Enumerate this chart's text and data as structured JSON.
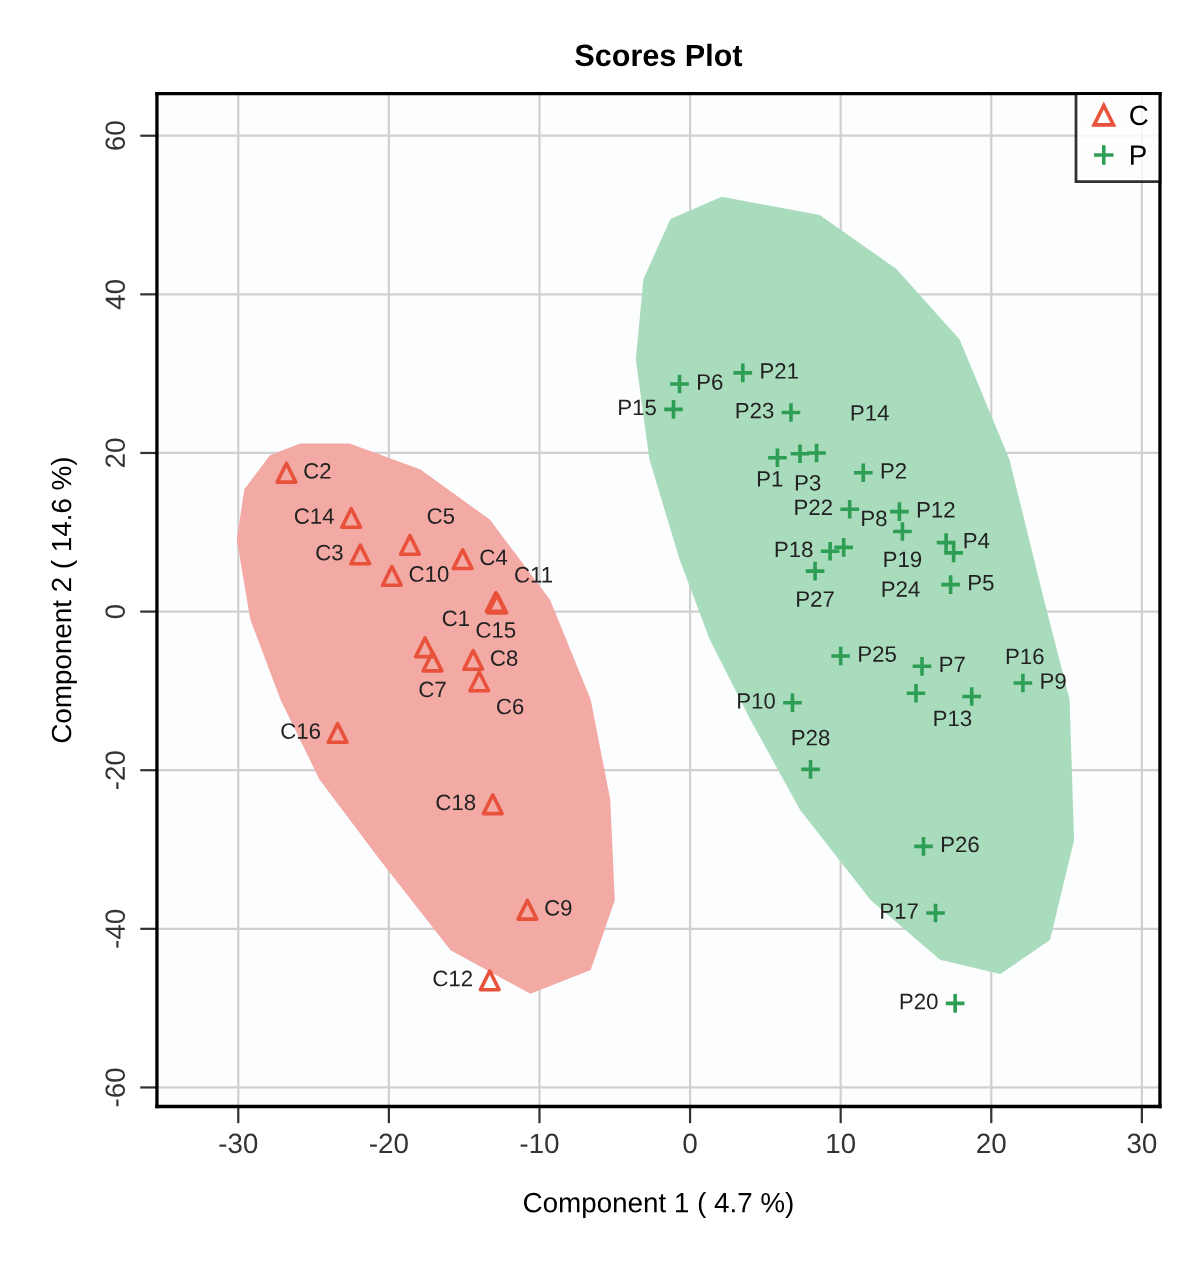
{
  "chart_data": {
    "type": "scatter",
    "title": "Scores Plot",
    "xlabel": "Component 1 ( 4.7 %)",
    "ylabel": "Component 2 ( 14.6 %)",
    "xlim": [
      -35.4,
      31.2
    ],
    "ylim": [
      -62.4,
      65.3
    ],
    "xticks": [
      -30,
      -20,
      -10,
      0,
      10,
      20,
      30
    ],
    "yticks": [
      -60,
      -40,
      -20,
      0,
      20,
      40,
      60
    ],
    "grid": true,
    "legend": "top right",
    "series": [
      {
        "type": "area",
        "color": "#f3a9a4",
        "x": [
          -25.9,
          -27.9,
          -29.6,
          -30.1,
          -29.2,
          -27.2,
          -24.6,
          -20.6,
          -15.9,
          -10.6,
          -6.6,
          -5.0,
          -5.3,
          -6.6,
          -9.3,
          -13.3,
          -17.9,
          -22.6
        ],
        "values": [
          21.2,
          19.7,
          15.4,
          9.1,
          -1.0,
          -11.1,
          -21.2,
          -31.3,
          -42.7,
          -48.2,
          -45.2,
          -36.4,
          -23.7,
          -11.1,
          1.5,
          11.6,
          17.9,
          21.2
        ]
      },
      {
        "type": "area",
        "color": "#a9dbbd",
        "x": [
          2.1,
          -1.3,
          -3.1,
          -3.6,
          -2.7,
          -0.7,
          1.3,
          4.0,
          7.3,
          12.0,
          16.6,
          20.6,
          23.9,
          25.5,
          25.2,
          23.5,
          21.2,
          17.9,
          13.7,
          8.6
        ],
        "values": [
          52.3,
          49.5,
          41.9,
          31.8,
          19.2,
          6.6,
          -3.5,
          -13.6,
          -25.0,
          -36.4,
          -43.9,
          -45.7,
          -41.4,
          -28.8,
          -11.1,
          1.5,
          19.2,
          34.3,
          43.2,
          50.0
        ]
      },
      {
        "name": "C",
        "color": "#e8513a",
        "marker": "triangle",
        "x": [
          -26.8,
          -22.5,
          -21.9,
          -18.6,
          -19.8,
          -15.1,
          -12.9,
          -12.8,
          -17.6,
          -17.1,
          -14.4,
          -14.0,
          -23.4,
          -13.1,
          -10.8,
          -13.3
        ],
        "values": [
          17.5,
          11.8,
          7.2,
          8.4,
          4.5,
          6.6,
          1.2,
          1.0,
          -4.5,
          -6.3,
          -6.1,
          -8.8,
          -15.3,
          -24.3,
          -37.6,
          -46.5
        ],
        "value_labels": [
          "C2",
          "C14",
          "C3",
          "C5",
          "C10",
          "C4",
          "C15",
          "C11",
          "C1",
          "C7",
          "C8",
          "C6",
          "C16",
          "C18",
          "C9",
          "C12"
        ]
      },
      {
        "name": "P",
        "color": "#2e9e55",
        "marker": "cross",
        "x": [
          -0.7,
          3.5,
          -1.1,
          6.7,
          5.8,
          7.3,
          8.4,
          11.5,
          10.6,
          13.9,
          14.1,
          17.0,
          17.5,
          17.3,
          10.2,
          9.3,
          8.3,
          10.0,
          15.4,
          6.8,
          15.0,
          18.7,
          22.1,
          8.0,
          15.5,
          16.3,
          17.6
        ],
        "values": [
          28.7,
          30.1,
          25.5,
          25.1,
          19.4,
          19.9,
          20.0,
          17.5,
          12.9,
          12.6,
          10.1,
          8.7,
          7.4,
          3.4,
          8.1,
          7.6,
          5.1,
          -5.6,
          -6.9,
          -11.5,
          -10.3,
          -10.7,
          -9.0,
          -19.9,
          -29.6,
          -38.0,
          -49.4
        ],
        "value_labels": [
          "P6",
          "P21",
          "P15",
          "P23",
          "P3",
          "P1",
          "P14",
          "P2",
          "P22",
          "P12",
          "P19",
          "P4",
          "P24",
          "P5",
          "P8",
          "P18",
          "P27",
          "P25",
          "P7",
          "P10",
          "P13",
          "P16",
          "P9",
          "P28",
          "P26",
          "P17",
          "P20"
        ]
      }
    ]
  }
}
